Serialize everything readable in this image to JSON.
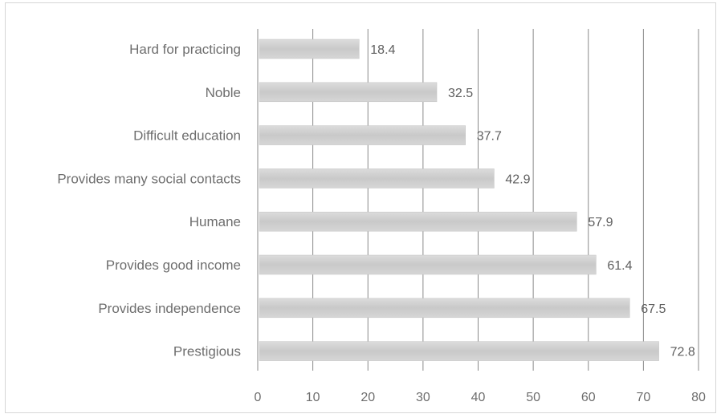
{
  "chart_data": {
    "type": "bar",
    "orientation": "horizontal",
    "title": "",
    "xlabel": "",
    "ylabel": "",
    "categories": [
      "Hard for practicing",
      "Noble",
      "Difficult education",
      "Provides many social contacts",
      "Humane",
      "Provides good income",
      "Provides independence",
      "Prestigious"
    ],
    "values": [
      18.4,
      32.5,
      37.7,
      42.9,
      57.9,
      61.4,
      67.5,
      72.8
    ],
    "data_labels": [
      "18.4",
      "32.5",
      "37.7",
      "42.9",
      "57.9",
      "61.4",
      "67.5",
      "72.8"
    ],
    "xlim": [
      0,
      80
    ],
    "xticks": [
      0,
      10,
      20,
      30,
      40,
      50,
      60,
      70,
      80
    ],
    "tick_labels": [
      "0",
      "10",
      "20",
      "30",
      "40",
      "50",
      "60",
      "70",
      "80"
    ],
    "grid": "vertical",
    "legend": "none",
    "colors": {
      "bar": "#cfcfcf",
      "gridline": "#8a8a8a",
      "text": "#6e6e6e"
    }
  }
}
